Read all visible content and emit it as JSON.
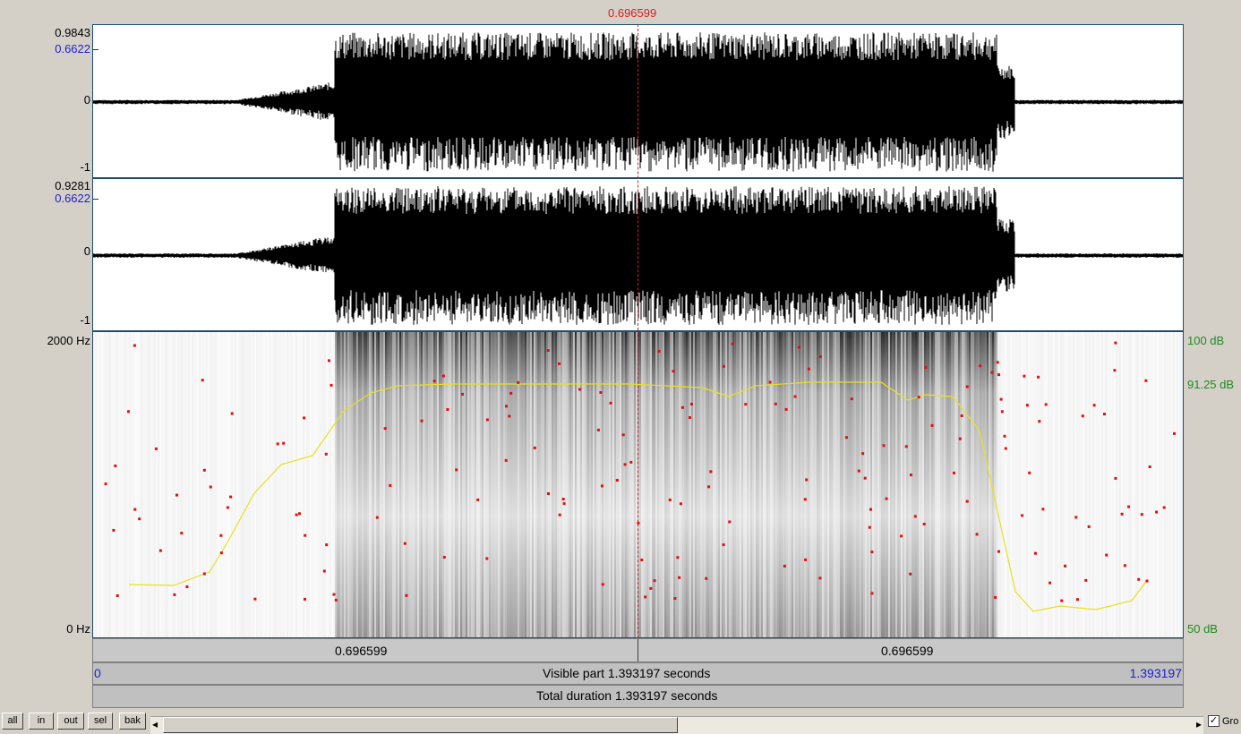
{
  "cursor_time_label": "0.696599",
  "channel1": {
    "max": "0.9843",
    "sub": "0.6622",
    "zero": "0",
    "min": "-1"
  },
  "channel2": {
    "max": "0.9281",
    "sub": "0.6622",
    "zero": "0",
    "min": "-1"
  },
  "spectrogram": {
    "freq_top": "2000 Hz",
    "freq_bottom": "0 Hz",
    "db_top": "100 dB",
    "db_mid": "91.25 dB",
    "db_bottom": "50 dB"
  },
  "time_bar": {
    "left_label": "0.696599",
    "right_label": "0.696599"
  },
  "visible_bar": {
    "start": "0",
    "text": "Visible part 1.393197 seconds",
    "end": "1.393197"
  },
  "total_bar": {
    "text": "Total duration 1.393197 seconds"
  },
  "buttons": {
    "all": "all",
    "in": "in",
    "out": "out",
    "sel": "sel",
    "bak": "bak"
  },
  "scroll": {
    "left_arrow": "◂",
    "right_arrow": "▸"
  },
  "group_checkbox": {
    "checked": "✓",
    "label": "Gro"
  }
}
